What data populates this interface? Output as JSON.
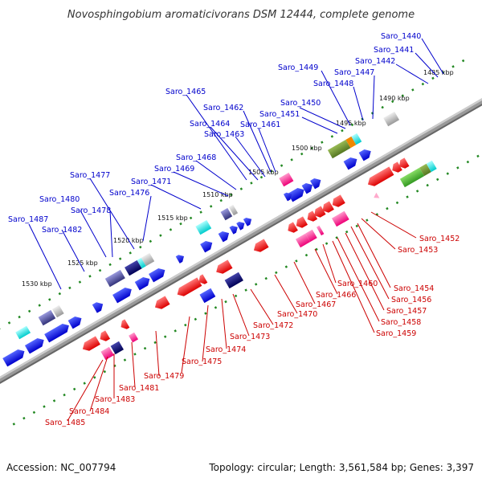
{
  "title": "Novosphingobium aromaticivorans DSM 12444, complete genome",
  "footer": {
    "accession": "Accession: NC_007794",
    "summary": "Topology: circular; Length: 3,561,584 bp; Genes: 3,397"
  },
  "colors": {
    "forward_label": "#0000cc",
    "reverse_label": "#cc0000",
    "backbone": "#999999",
    "tick": "#228822"
  },
  "kbp_ticks": [
    "1485 kbp",
    "1490 kbp",
    "1495 kbp",
    "1500 kbp",
    "1505 kbp",
    "1510 kbp",
    "1515 kbp",
    "1520 kbp",
    "1525 kbp",
    "1530 kbp"
  ],
  "forward_labels": [
    "Saro_1440",
    "Saro_1441",
    "Saro_1442",
    "Saro_1447",
    "Saro_1448",
    "Saro_1449",
    "Saro_1450",
    "Saro_1451",
    "Saro_1461",
    "Saro_1462",
    "Saro_1463",
    "Saro_1464",
    "Saro_1465",
    "Saro_1468",
    "Saro_1469",
    "Saro_1471",
    "Saro_1476",
    "Saro_1477",
    "Saro_1478",
    "Saro_1480",
    "Saro_1482",
    "Saro_1487"
  ],
  "reverse_labels": [
    "Saro_1452",
    "Saro_1453",
    "Saro_1454",
    "Saro_1456",
    "Saro_1457",
    "Saro_1458",
    "Saro_1459",
    "Saro_1460",
    "Saro_1466",
    "Saro_1467",
    "Saro_1470",
    "Saro_1472",
    "Saro_1473",
    "Saro_1474",
    "Saro_1475",
    "Saro_1479",
    "Saro_1481",
    "Saro_1483",
    "Saro_1484",
    "Saro_1485"
  ]
}
